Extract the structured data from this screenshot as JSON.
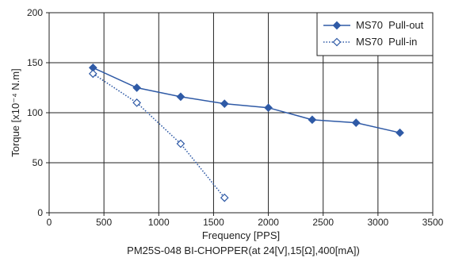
{
  "chart_data": {
    "type": "line",
    "title": "",
    "caption": "PM25S-048 BI-CHOPPER(at 24[V],15[Ω],400[mA])",
    "xlabel": "Frequency [PPS]",
    "ylabel": "Torque [x10⁻⁴ N.m]",
    "xlim": [
      0,
      3500
    ],
    "ylim": [
      0,
      200
    ],
    "xticks": [
      0,
      500,
      1000,
      1500,
      2000,
      2500,
      3000,
      3500
    ],
    "yticks": [
      0,
      50,
      100,
      150,
      200
    ],
    "grid": true,
    "legend_position": "top-right",
    "series": [
      {
        "name": "MS70  Pull-out",
        "x": [
          400,
          800,
          1200,
          1600,
          2000,
          2400,
          2800,
          3200
        ],
        "y": [
          145,
          125,
          116,
          109,
          105,
          93,
          90,
          80
        ],
        "color": "#2f5aa6",
        "line_style": "solid",
        "marker": "diamond-filled"
      },
      {
        "name": "MS70  Pull-in",
        "x": [
          400,
          800,
          1200,
          1600
        ],
        "y": [
          139,
          110,
          69,
          15
        ],
        "color": "#2f5aa6",
        "line_style": "dotted",
        "marker": "diamond-open"
      }
    ]
  }
}
